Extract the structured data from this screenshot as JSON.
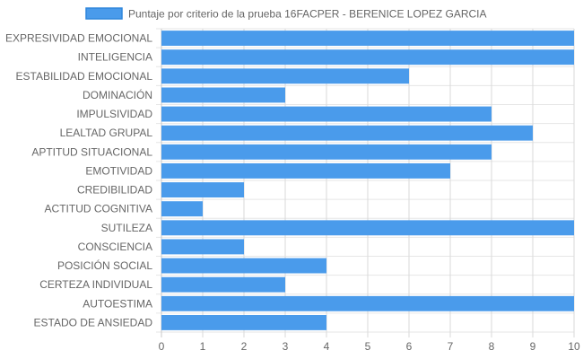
{
  "chart_data": {
    "type": "bar",
    "orientation": "horizontal",
    "title": "",
    "series": [
      {
        "name": "Puntaje por criterio de la prueba 16FACPER - BERENICE LOPEZ GARCIA",
        "color": "#4a9beb",
        "values": [
          10,
          10,
          6,
          3,
          8,
          9,
          8,
          7,
          2,
          1,
          10,
          2,
          4,
          3,
          10,
          4
        ]
      }
    ],
    "categories": [
      "EXPRESIVIDAD EMOCIONAL",
      "INTELIGENCIA",
      "ESTABILIDAD EMOCIONAL",
      "DOMINACIÓN",
      "IMPULSIVIDAD",
      "LEALTAD GRUPAL",
      "APTITUD SITUACIONAL",
      "EMOTIVIDAD",
      "CREDIBILIDAD",
      "ACTITUD COGNITIVA",
      "SUTILEZA",
      "CONSCIENCIA",
      "POSICIÓN SOCIAL",
      "CERTEZA INDIVIDUAL",
      "AUTOESTIMA",
      "ESTADO DE ANSIEDAD"
    ],
    "xlim": [
      0,
      10
    ],
    "xticks": [
      "0",
      "1",
      "2",
      "3",
      "4",
      "5",
      "6",
      "7",
      "8",
      "9",
      "10"
    ],
    "grid": true,
    "legend_position": "top",
    "xlabel": "",
    "ylabel": ""
  }
}
